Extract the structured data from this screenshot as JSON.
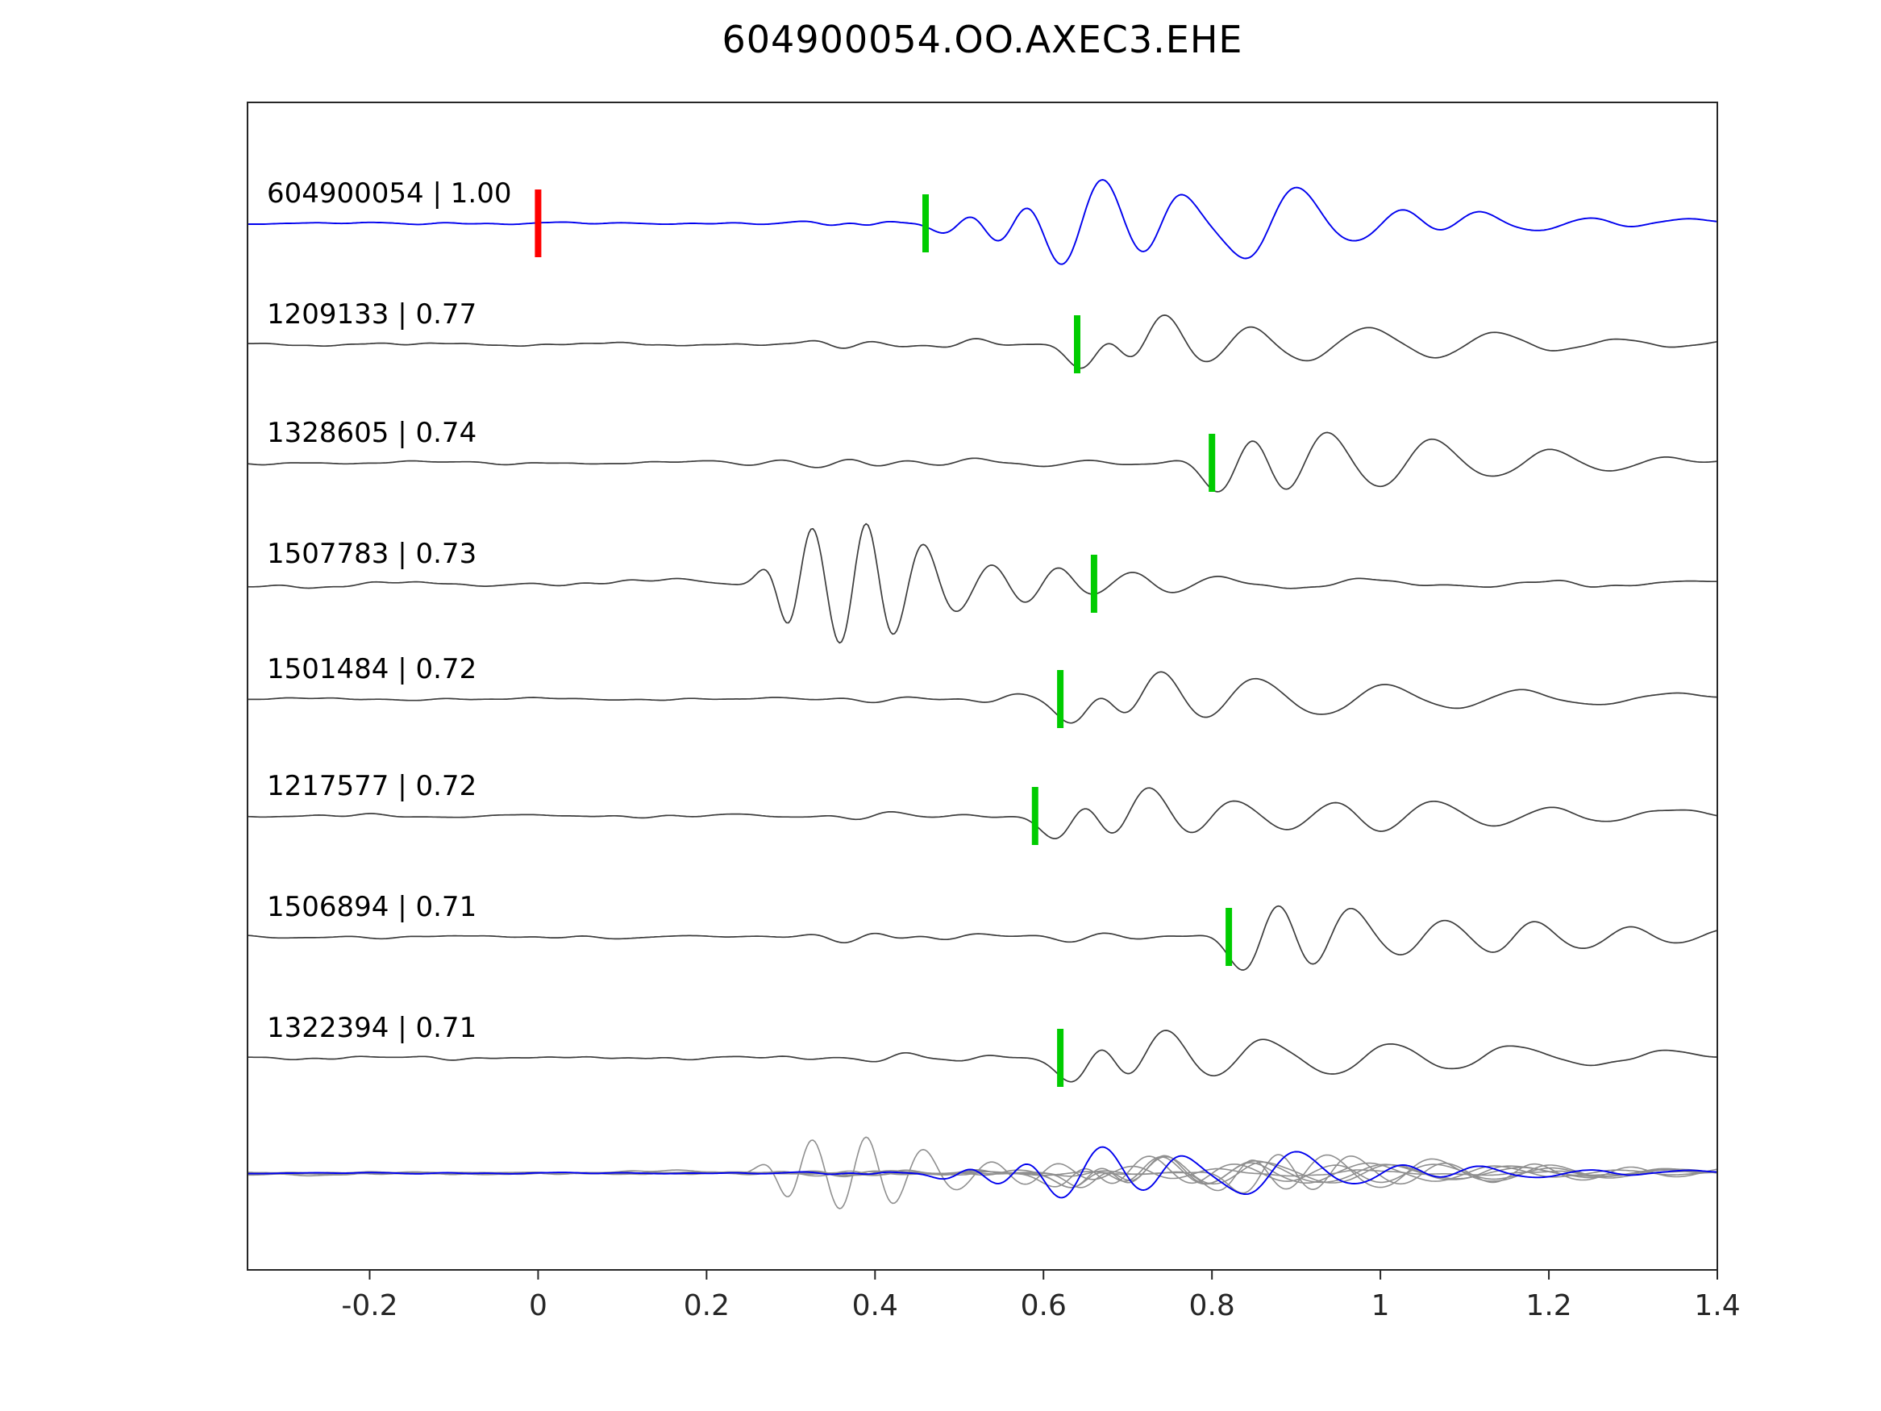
{
  "chart_data": {
    "type": "line",
    "title": "604900054.OO.AXEC3.EHE",
    "xlabel": "",
    "ylabel": "",
    "xlim": [
      -0.345,
      1.4
    ],
    "grid": false,
    "legend": null,
    "x_ticks": [
      -0.2,
      0,
      0.2,
      0.4,
      0.6,
      0.8,
      1,
      1.2,
      1.4
    ],
    "x_tick_labels": [
      "-0.2",
      "0",
      "0.2",
      "0.4",
      "0.6",
      "0.8",
      "1",
      "1.2",
      "1.4"
    ],
    "colors": {
      "reference_trace": "#0000ee",
      "template_trace": "#3c3c3c",
      "overlay_gray": "#8f8f8f",
      "pick_marker": "#00cc00",
      "reference_marker": "#ff0000",
      "axis": "#262626",
      "text": "#000000"
    },
    "reference_marker_x": 0.0,
    "traces": [
      {
        "id": "604900054",
        "cc": "1.00",
        "label": "604900054 | 1.00",
        "pick_time": 0.46,
        "is_reference": true,
        "noise": 2.0,
        "seed": 11,
        "packets": [
          {
            "t": 0.36,
            "f": 14,
            "a": 3,
            "d": 0.05
          },
          {
            "t": 0.4,
            "f": 12,
            "a": 5,
            "d": 0.03
          },
          {
            "t": 0.5,
            "f": 9,
            "a": 18,
            "d": 0.035
          },
          {
            "t": 0.565,
            "f": 8,
            "a": 38,
            "d": 0.04
          },
          {
            "t": 0.645,
            "f": 7,
            "a": 78,
            "d": 0.05
          },
          {
            "t": 0.74,
            "f": 7.5,
            "a": 50,
            "d": 0.045
          },
          {
            "t": 0.87,
            "f": 6,
            "a": 62,
            "d": 0.06
          },
          {
            "t": 1.0,
            "f": 5.5,
            "a": 28,
            "d": 0.06
          },
          {
            "t": 1.09,
            "f": 6,
            "a": 22,
            "d": 0.05
          },
          {
            "t": 1.22,
            "f": 5,
            "a": 12,
            "d": 0.07
          },
          {
            "t": 1.33,
            "f": 4.5,
            "a": 8,
            "d": 0.07
          }
        ]
      },
      {
        "id": "1209133",
        "cc": "0.77",
        "label": "1209133 | 0.77",
        "pick_time": 0.64,
        "is_reference": false,
        "noise": 2.2,
        "seed": 23,
        "packets": [
          {
            "t": 0.38,
            "f": 13,
            "a": 5,
            "d": 0.07
          },
          {
            "t": 0.5,
            "f": 11,
            "a": 5,
            "d": 0.05
          },
          {
            "t": 0.665,
            "f": 8,
            "a": 45,
            "d": 0.04
          },
          {
            "t": 0.72,
            "f": 7,
            "a": 55,
            "d": 0.045
          },
          {
            "t": 0.82,
            "f": 6,
            "a": 35,
            "d": 0.05
          },
          {
            "t": 0.95,
            "f": 5,
            "a": 28,
            "d": 0.07
          },
          {
            "t": 1.1,
            "f": 5,
            "a": 22,
            "d": 0.07
          },
          {
            "t": 1.25,
            "f": 4.5,
            "a": 12,
            "d": 0.08
          },
          {
            "t": 1.38,
            "f": 4,
            "a": 8,
            "d": 0.06
          }
        ]
      },
      {
        "id": "1328605",
        "cc": "0.74",
        "label": "1328605 | 0.74",
        "pick_time": 0.8,
        "is_reference": false,
        "noise": 2.2,
        "seed": 37,
        "packets": [
          {
            "t": 0.35,
            "f": 12,
            "a": 6,
            "d": 0.08
          },
          {
            "t": 0.5,
            "f": 10,
            "a": 6,
            "d": 0.07
          },
          {
            "t": 0.63,
            "f": 9,
            "a": 5,
            "d": 0.06
          },
          {
            "t": 0.83,
            "f": 7.5,
            "a": 55,
            "d": 0.045
          },
          {
            "t": 0.91,
            "f": 6,
            "a": 60,
            "d": 0.05
          },
          {
            "t": 1.03,
            "f": 5.5,
            "a": 40,
            "d": 0.06
          },
          {
            "t": 1.17,
            "f": 5,
            "a": 25,
            "d": 0.07
          },
          {
            "t": 1.3,
            "f": 4.5,
            "a": 14,
            "d": 0.08
          },
          {
            "t": 1.4,
            "f": 4,
            "a": 8,
            "d": 0.06
          }
        ]
      },
      {
        "id": "1507783",
        "cc": "0.73",
        "label": "1507783 | 0.73",
        "pick_time": 0.66,
        "is_reference": false,
        "noise": 3.0,
        "seed": 41,
        "packets": [
          {
            "t": -0.2,
            "f": 2.2,
            "a": 7,
            "d": 0.2
          },
          {
            "t": 0.05,
            "f": 1.8,
            "a": 6,
            "d": 0.25
          },
          {
            "t": 0.31,
            "f": 16,
            "a": 55,
            "d": 0.04
          },
          {
            "t": 0.375,
            "f": 15,
            "a": 70,
            "d": 0.045
          },
          {
            "t": 0.44,
            "f": 13,
            "a": 45,
            "d": 0.05
          },
          {
            "t": 0.52,
            "f": 11,
            "a": 25,
            "d": 0.05
          },
          {
            "t": 0.6,
            "f": 10,
            "a": 20,
            "d": 0.05
          },
          {
            "t": 0.68,
            "f": 9,
            "a": 16,
            "d": 0.06
          },
          {
            "t": 0.78,
            "f": 8,
            "a": 10,
            "d": 0.07
          },
          {
            "t": 0.95,
            "f": 7,
            "a": 7,
            "d": 0.1
          },
          {
            "t": 1.15,
            "f": 6,
            "a": 6,
            "d": 0.1
          },
          {
            "t": 1.32,
            "f": 5,
            "a": 5,
            "d": 0.08
          }
        ]
      },
      {
        "id": "1501484",
        "cc": "0.72",
        "label": "1501484 | 0.72",
        "pick_time": 0.62,
        "is_reference": false,
        "noise": 2.0,
        "seed": 53,
        "packets": [
          {
            "t": 0.42,
            "f": 12,
            "a": 4,
            "d": 0.06
          },
          {
            "t": 0.55,
            "f": 10,
            "a": 6,
            "d": 0.04
          },
          {
            "t": 0.655,
            "f": 7,
            "a": 48,
            "d": 0.04
          },
          {
            "t": 0.715,
            "f": 6.5,
            "a": 55,
            "d": 0.05
          },
          {
            "t": 0.82,
            "f": 5.5,
            "a": 35,
            "d": 0.06
          },
          {
            "t": 0.97,
            "f": 5,
            "a": 25,
            "d": 0.07
          },
          {
            "t": 1.13,
            "f": 4.5,
            "a": 16,
            "d": 0.08
          },
          {
            "t": 1.3,
            "f": 4,
            "a": 9,
            "d": 0.09
          }
        ]
      },
      {
        "id": "1217577",
        "cc": "0.72",
        "label": "1217577 | 0.72",
        "pick_time": 0.59,
        "is_reference": false,
        "noise": 2.2,
        "seed": 67,
        "packets": [
          {
            "t": 0.4,
            "f": 12,
            "a": 5,
            "d": 0.06
          },
          {
            "t": 0.635,
            "f": 7.5,
            "a": 45,
            "d": 0.04
          },
          {
            "t": 0.7,
            "f": 6.5,
            "a": 55,
            "d": 0.05
          },
          {
            "t": 0.8,
            "f": 6,
            "a": 30,
            "d": 0.05
          },
          {
            "t": 0.92,
            "f": 5.5,
            "a": 25,
            "d": 0.06
          },
          {
            "t": 1.03,
            "f": 5.5,
            "a": 28,
            "d": 0.06
          },
          {
            "t": 1.17,
            "f": 5,
            "a": 18,
            "d": 0.07
          },
          {
            "t": 1.3,
            "f": 4.5,
            "a": 10,
            "d": 0.08
          }
        ]
      },
      {
        "id": "1506894",
        "cc": "0.71",
        "label": "1506894 | 0.71",
        "pick_time": 0.82,
        "is_reference": false,
        "noise": 2.4,
        "seed": 71,
        "packets": [
          {
            "t": 0.38,
            "f": 12,
            "a": 6,
            "d": 0.07
          },
          {
            "t": 0.5,
            "f": 11,
            "a": 5,
            "d": 0.06
          },
          {
            "t": 0.65,
            "f": 10,
            "a": 6,
            "d": 0.06
          },
          {
            "t": 0.86,
            "f": 8,
            "a": 62,
            "d": 0.045
          },
          {
            "t": 0.94,
            "f": 7,
            "a": 50,
            "d": 0.05
          },
          {
            "t": 1.05,
            "f": 6.5,
            "a": 30,
            "d": 0.05
          },
          {
            "t": 1.16,
            "f": 6.5,
            "a": 30,
            "d": 0.05
          },
          {
            "t": 1.27,
            "f": 5.5,
            "a": 22,
            "d": 0.06
          },
          {
            "t": 1.38,
            "f": 5,
            "a": 14,
            "d": 0.06
          }
        ]
      },
      {
        "id": "1322394",
        "cc": "0.71",
        "label": "1322394 | 0.71",
        "pick_time": 0.62,
        "is_reference": false,
        "noise": 2.2,
        "seed": 83,
        "packets": [
          {
            "t": 0.42,
            "f": 12,
            "a": 5,
            "d": 0.06
          },
          {
            "t": 0.52,
            "f": 10,
            "a": 5,
            "d": 0.05
          },
          {
            "t": 0.655,
            "f": 7,
            "a": 50,
            "d": 0.04
          },
          {
            "t": 0.72,
            "f": 6.5,
            "a": 55,
            "d": 0.05
          },
          {
            "t": 0.83,
            "f": 5.5,
            "a": 30,
            "d": 0.06
          },
          {
            "t": 0.98,
            "f": 5,
            "a": 28,
            "d": 0.07
          },
          {
            "t": 1.12,
            "f": 4.5,
            "a": 20,
            "d": 0.08
          },
          {
            "t": 1.3,
            "f": 4,
            "a": 10,
            "d": 0.09
          }
        ]
      }
    ],
    "overlay": {
      "scale": 0.6,
      "description": "all traces superimposed at bottom, templates in gray, reference trace in blue"
    }
  }
}
